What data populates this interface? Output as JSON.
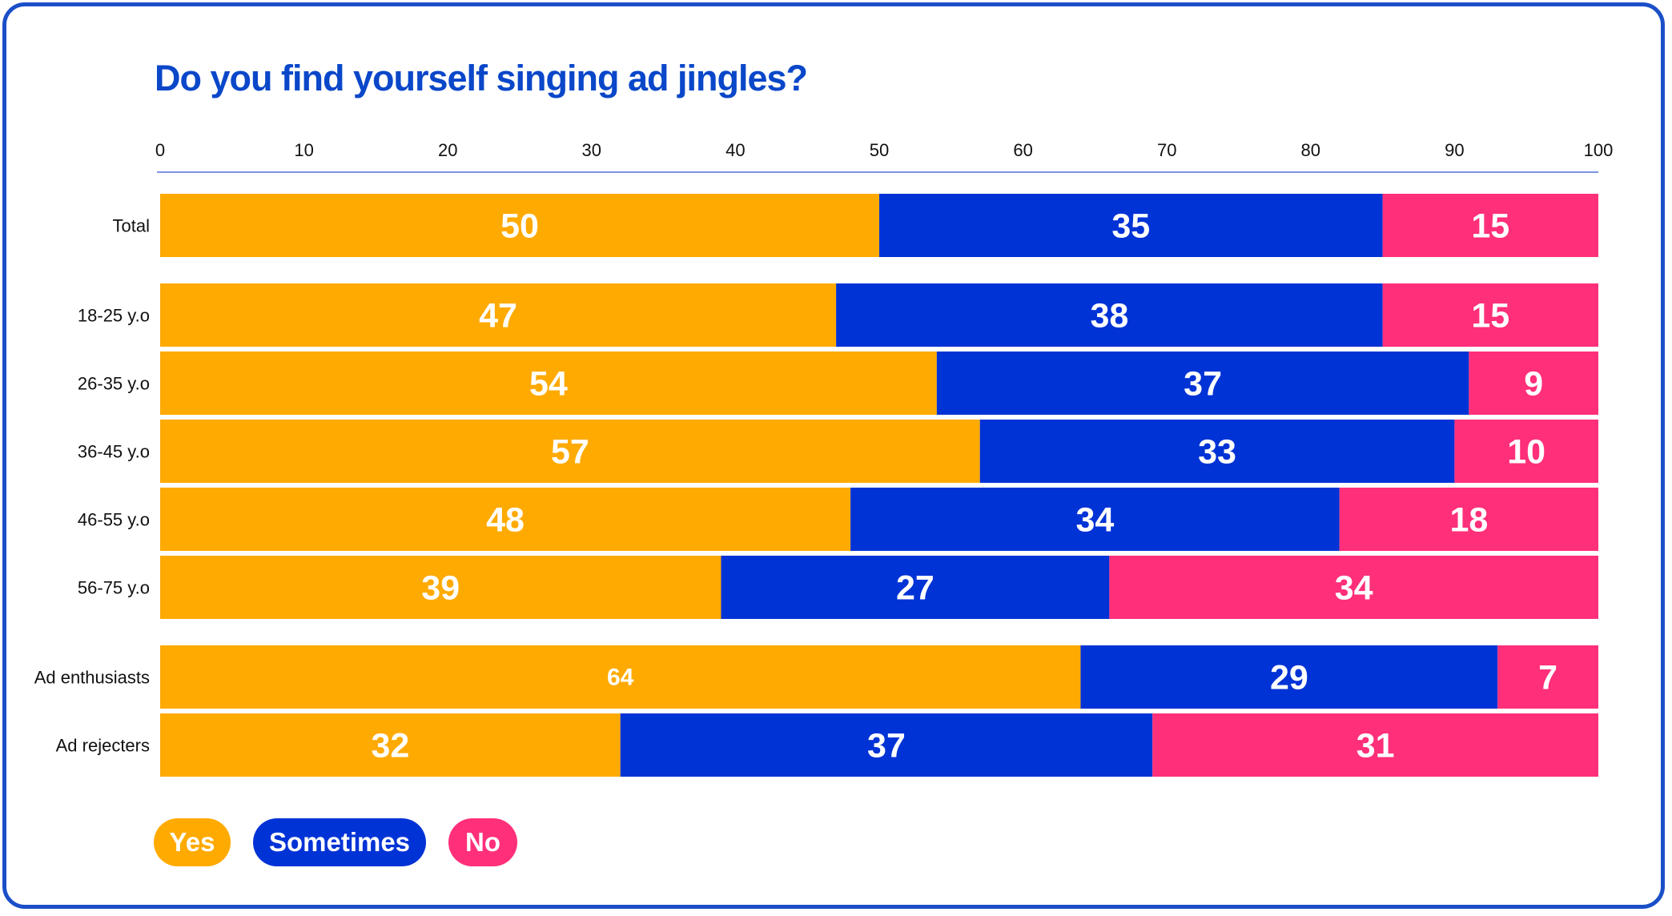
{
  "chart_data": {
    "type": "bar",
    "orientation": "horizontal",
    "stacked": true,
    "title": "Do you find yourself singing ad jingles?",
    "xlim": [
      0,
      100
    ],
    "xticks": [
      "0",
      "10",
      "20",
      "30",
      "40",
      "50",
      "60",
      "70",
      "80",
      "90",
      "100"
    ],
    "categories": [
      "Total",
      "18-25 y.o",
      "26-35 y.o",
      "36-45 y.o",
      "46-55 y.o",
      "56-75 y.o",
      "Ad enthusiasts",
      "Ad rejecters"
    ],
    "series": [
      {
        "name": "Yes",
        "color": "#ffaa00",
        "values": [
          50,
          47,
          54,
          57,
          48,
          39,
          64,
          32
        ]
      },
      {
        "name": "Sometimes",
        "color": "#0033d6",
        "values": [
          35,
          38,
          37,
          33,
          34,
          27,
          29,
          37
        ]
      },
      {
        "name": "No",
        "color": "#ff2f7a",
        "values": [
          15,
          15,
          9,
          10,
          18,
          34,
          7,
          31
        ]
      }
    ],
    "legend_position": "bottom-left"
  },
  "colors": {
    "title": "#0a47c9",
    "axis_line": "#7c93e0",
    "frame": "#1a4fc8"
  }
}
